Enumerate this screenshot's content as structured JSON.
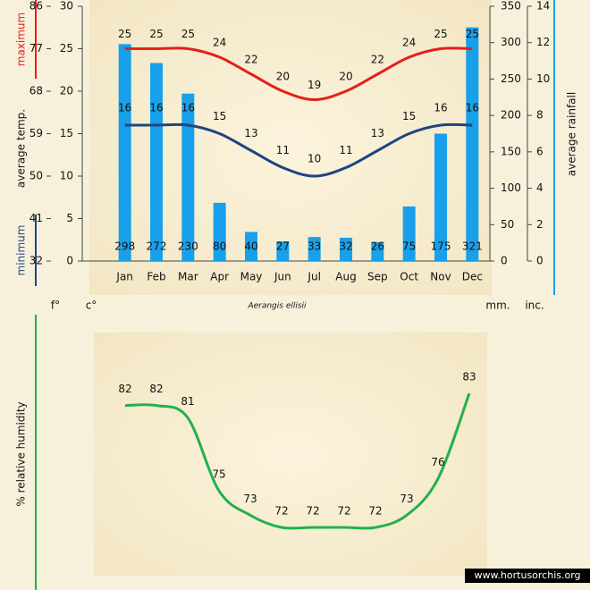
{
  "chart_data": [
    {
      "type": "bar",
      "subtitle": "Aerangis ellisii",
      "categories": [
        "Jan",
        "Feb",
        "Mar",
        "Apr",
        "May",
        "Jun",
        "Jul",
        "Aug",
        "Sep",
        "Oct",
        "Nov",
        "Dec"
      ],
      "series": [
        {
          "name": "maximum",
          "type": "line",
          "color": "#e3201b",
          "values": [
            25,
            25,
            25,
            24,
            22,
            20,
            19,
            20,
            22,
            24,
            25,
            25
          ]
        },
        {
          "name": "minimum",
          "type": "line",
          "color": "#1f4580",
          "values": [
            16,
            16,
            16,
            15,
            13,
            11,
            10,
            11,
            13,
            15,
            16,
            16
          ]
        },
        {
          "name": "average rainfall",
          "type": "bar",
          "axis": "y2",
          "color": "#18a0ea",
          "values": [
            298,
            272,
            230,
            80,
            40,
            27,
            33,
            32,
            26,
            75,
            175,
            321
          ]
        }
      ],
      "ylabel": "average temp.",
      "ylim": [
        0,
        30
      ],
      "yticks": [
        0,
        5,
        10,
        15,
        20,
        25,
        30
      ],
      "yunit": "c°",
      "yflim": [
        32,
        86
      ],
      "yfticks": [
        32,
        41,
        50,
        59,
        68,
        77,
        86
      ],
      "yfunit": "f°",
      "y2lim": [
        0,
        350
      ],
      "y2ticks": [
        0,
        50,
        100,
        150,
        200,
        250,
        300,
        350
      ],
      "y2unit": "mm.",
      "y2inlim": [
        0,
        14
      ],
      "y2inticks": [
        0,
        2,
        4,
        6,
        8,
        10,
        12,
        14
      ],
      "y2inunit": "inc."
    },
    {
      "type": "line",
      "ylabel": "% relative humidity",
      "series": [
        {
          "name": "% relative humidity",
          "color": "#22b14c",
          "values": [
            82,
            82,
            81,
            75,
            73,
            72,
            72,
            72,
            72,
            73,
            76,
            83
          ]
        }
      ],
      "watermark": "www.hortusorchis.org"
    }
  ]
}
